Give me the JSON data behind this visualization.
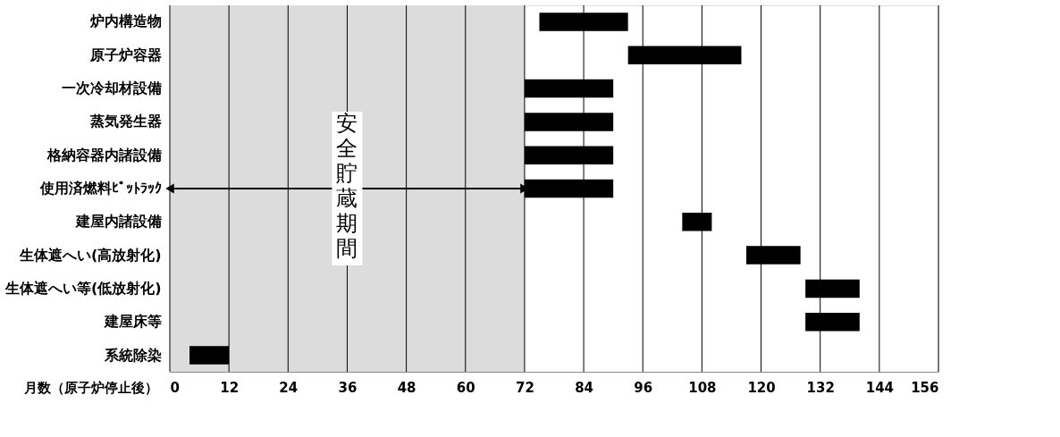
{
  "chart_data": {
    "type": "bar",
    "orientation": "horizontal",
    "xlabel": "月数（原子炉停止後）",
    "categories": [
      "炉内構造物",
      "原子炉容器",
      "一次冷却材設備",
      "蒸気発生器",
      "格納容器内諸設備",
      "使用済燃料ﾋﾟｯﾄﾗｯｸ",
      "建屋内諸設備",
      "生体遮へい(高放射化)",
      "生体遮へい等(低放射化)",
      "建屋床等",
      "系統除染"
    ],
    "base": [
      75,
      93,
      72,
      72,
      72,
      72,
      104,
      117,
      129,
      129,
      4
    ],
    "values": [
      18,
      23,
      18,
      18,
      18,
      18,
      6,
      11,
      11,
      11,
      8
    ],
    "color": "#000000",
    "xlim": [
      0,
      156
    ],
    "xticks": [
      0,
      12,
      24,
      36,
      48,
      60,
      72,
      84,
      96,
      108,
      120,
      132,
      144,
      156
    ],
    "grid": "x",
    "bands": [
      {
        "axis": "x",
        "from": 0,
        "to": 72,
        "label": "安全貯蔵期間",
        "color": "#dcdcdc"
      }
    ]
  }
}
